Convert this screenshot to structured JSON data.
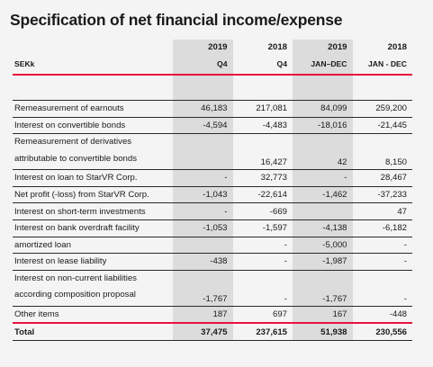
{
  "title": "Specification of net financial income/expense",
  "header": {
    "years": [
      "2019",
      "2018",
      "2019",
      "2018"
    ],
    "label": "SEKk",
    "periods": [
      "Q4",
      "Q4",
      "JAN–DEC",
      "JAN - DEC"
    ]
  },
  "rows": [
    {
      "label": "Remeasurement of earnouts",
      "v": [
        "46,183",
        "217,081",
        "84,099",
        "259,200"
      ]
    },
    {
      "label": "Interest on convertible bonds",
      "v": [
        "-4,594",
        "-4,483",
        "-18,016",
        "-21,445"
      ]
    },
    {
      "label": "Remeasurement of derivatives",
      "label2": "attributable to convertible bonds",
      "v": [
        "",
        "16,427",
        "42",
        "8,150"
      ]
    },
    {
      "label": "Interest on loan to StarVR Corp.",
      "v": [
        "-",
        "32,773",
        "-",
        "28,467"
      ]
    },
    {
      "label": "Net profit (-loss) from StarVR Corp.",
      "v": [
        "-1,043",
        "-22,614",
        "-1,462",
        "-37,233"
      ]
    },
    {
      "label": "Interest on short-term investments",
      "v": [
        "-",
        "-669",
        "",
        "47"
      ]
    },
    {
      "label": "Interest on bank overdraft facility",
      "v": [
        "-1,053",
        "-1,597",
        "-4,138",
        "-6,182"
      ]
    },
    {
      "label": "amortized loan",
      "v": [
        "",
        "-",
        "-5,000",
        "-"
      ]
    },
    {
      "label": "Interest on lease liability",
      "v": [
        "-438",
        "-",
        "-1,987",
        "-"
      ]
    },
    {
      "label": "Interest on non-current liabilities",
      "label2": "according composition proposal",
      "v": [
        "-1,767",
        "-",
        "-1,767",
        "-"
      ]
    },
    {
      "label": "Other items",
      "v": [
        "187",
        "697",
        "167",
        "-448"
      ]
    }
  ],
  "total": {
    "label": "Total",
    "v": [
      "37,475",
      "237,615",
      "51,938",
      "230,556"
    ]
  },
  "colors": {
    "accent": "#e8123c",
    "shade": "#dcdcdc"
  }
}
